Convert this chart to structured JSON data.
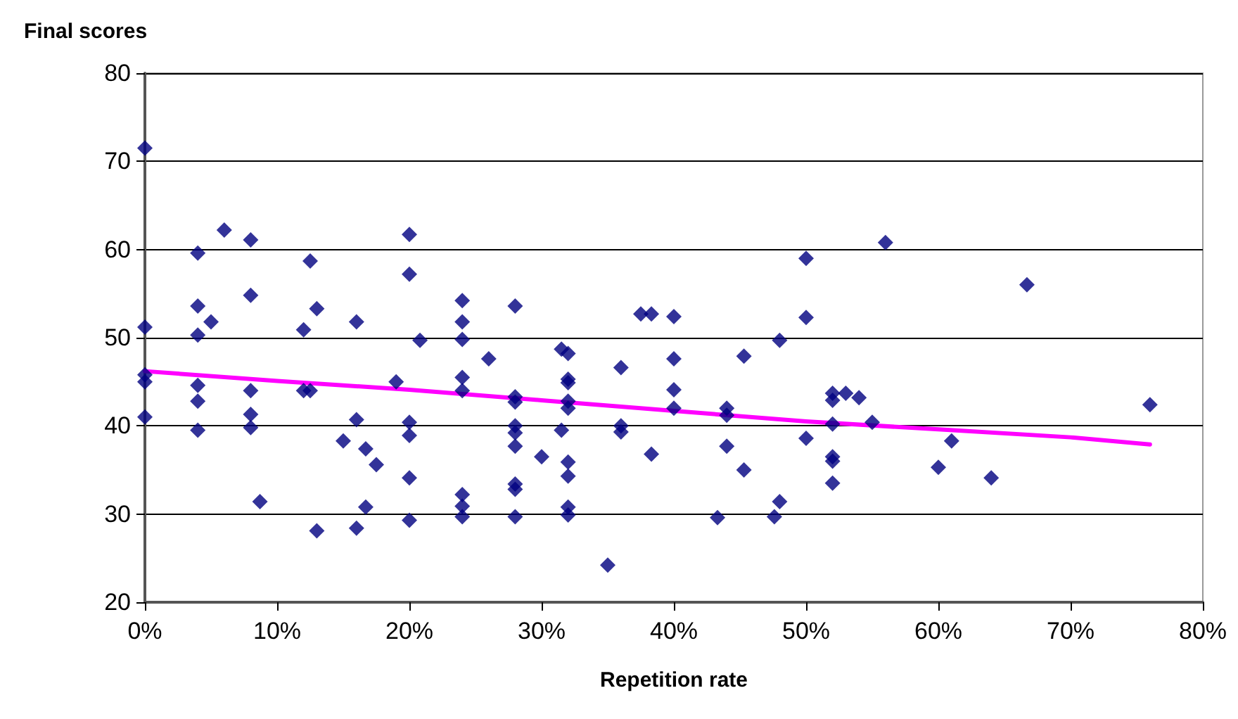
{
  "chart_data": {
    "type": "scatter",
    "title": "Final scores",
    "xlabel": "Repetition rate",
    "xlim": [
      0,
      80
    ],
    "xticks": [
      {
        "value": 0,
        "label": "0%"
      },
      {
        "value": 10,
        "label": "10%"
      },
      {
        "value": 20,
        "label": "20%"
      },
      {
        "value": 30,
        "label": "30%"
      },
      {
        "value": 40,
        "label": "40%"
      },
      {
        "value": 50,
        "label": "50%"
      },
      {
        "value": 60,
        "label": "60%"
      },
      {
        "value": 70,
        "label": "70%"
      },
      {
        "value": 80,
        "label": "80%"
      }
    ],
    "ylim": [
      20,
      80
    ],
    "yticks": [
      20,
      30,
      40,
      50,
      60,
      70,
      80
    ],
    "grid": "y",
    "marker": "diamond",
    "series": [
      {
        "color": "#000080",
        "x": [
          0,
          0,
          0,
          0,
          0,
          4,
          4,
          4,
          4,
          4,
          4,
          5,
          6,
          8,
          8,
          8,
          8,
          8,
          8.7,
          12,
          12,
          12.5,
          12.5,
          13,
          13,
          15,
          16,
          16,
          16,
          16.7,
          16.7,
          17.5,
          19,
          20,
          20,
          20,
          20,
          20,
          20,
          20.8,
          24,
          24,
          24,
          24,
          24,
          24,
          24,
          24,
          26,
          28,
          28,
          28,
          28,
          28,
          28,
          28,
          28,
          28,
          30,
          31.5,
          31.5,
          32,
          32,
          32,
          32,
          32,
          32,
          32,
          32,
          32,
          35,
          36,
          36,
          36,
          37.5,
          38.3,
          38.3,
          40,
          40,
          40,
          40,
          43.3,
          44,
          44,
          44,
          45.3,
          45.3,
          47.6,
          48,
          48,
          50,
          50,
          50,
          52,
          52,
          52,
          52,
          52,
          52,
          53,
          54,
          55,
          56,
          60,
          61,
          64,
          66.7,
          76
        ],
        "values": [
          71.5,
          51.2,
          45.8,
          45,
          41,
          59.6,
          53.6,
          50.3,
          44.6,
          42.8,
          39.5,
          51.8,
          62.2,
          61.1,
          54.8,
          44,
          41.3,
          39.8,
          31.4,
          50.9,
          44,
          58.7,
          44,
          53.3,
          28.1,
          38.3,
          51.8,
          40.7,
          28.4,
          37.4,
          30.8,
          35.6,
          45,
          61.7,
          57.2,
          40.4,
          38.9,
          34.1,
          29.3,
          49.7,
          54.2,
          51.8,
          49.8,
          45.5,
          44,
          32.2,
          30.9,
          29.7,
          47.6,
          53.6,
          43.3,
          42.7,
          40,
          39.2,
          37.7,
          33.4,
          32.8,
          29.7,
          36.5,
          48.7,
          39.5,
          48.2,
          45.3,
          44.9,
          42.8,
          42,
          35.9,
          34.3,
          30.8,
          29.9,
          24.2,
          46.6,
          40,
          39.3,
          52.7,
          52.7,
          36.8,
          52.4,
          47.6,
          44.1,
          42,
          29.6,
          42,
          41.2,
          37.7,
          47.9,
          35,
          29.7,
          49.7,
          31.4,
          59,
          52.3,
          38.6,
          43.7,
          42.9,
          40.2,
          36.5,
          36,
          33.5,
          43.7,
          43.2,
          40.4,
          60.8,
          35.3,
          38.3,
          34.1,
          56,
          42.4
        ]
      },
      {
        "type": "line",
        "color": "#ff00ff",
        "marker": "none",
        "line_style": "solid",
        "x": [
          0,
          10,
          20,
          30,
          40,
          50,
          60,
          70,
          76
        ],
        "values": [
          46.2,
          45.1,
          44.1,
          42.9,
          41.7,
          40.5,
          39.6,
          38.7,
          37.9
        ]
      }
    ]
  }
}
